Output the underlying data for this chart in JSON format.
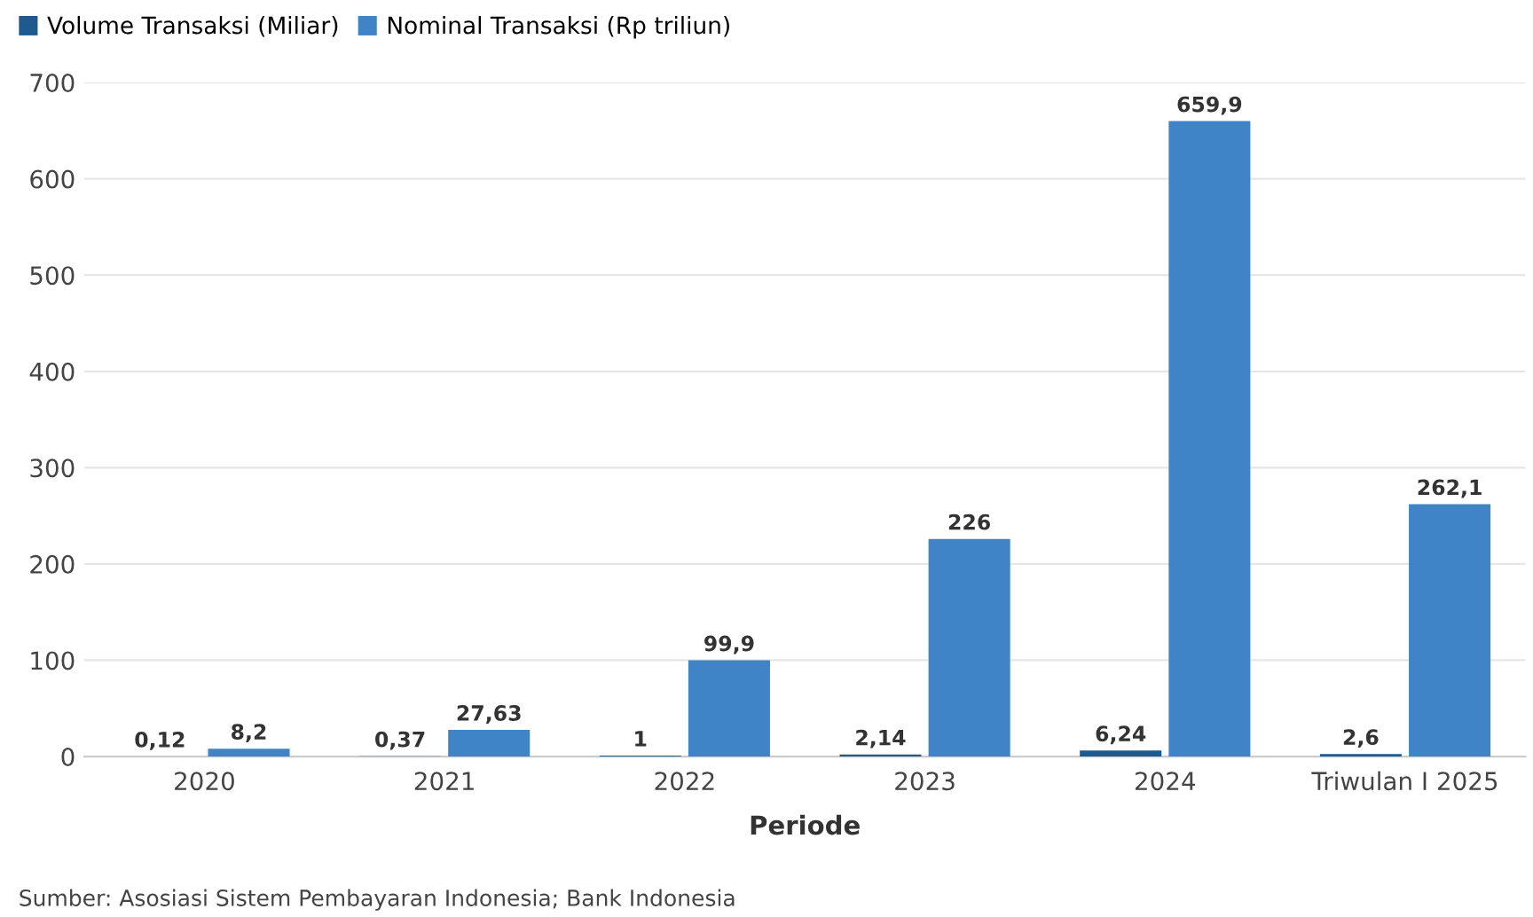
{
  "chart_data": {
    "type": "bar",
    "xlabel": "Periode",
    "categories": [
      "2020",
      "2021",
      "2022",
      "2023",
      "2024",
      "Triwulan I 2025"
    ],
    "series": [
      {
        "name": "Volume Transaksi (Miliar)",
        "color": "#1f5a8f",
        "values": [
          0.12,
          0.37,
          1,
          2.14,
          6.24,
          2.6
        ],
        "value_labels": [
          "0,12",
          "0,37",
          "1",
          "2,14",
          "6,24",
          "2,6"
        ]
      },
      {
        "name": "Nominal Transaksi (Rp triliun)",
        "color": "#3f84c6",
        "values": [
          8.2,
          27.63,
          99.9,
          226,
          659.9,
          262.1
        ],
        "value_labels": [
          "8,2",
          "27,63",
          "99,9",
          "226",
          "659,9",
          "262,1"
        ]
      }
    ],
    "ylim": [
      0,
      700
    ],
    "yticks": [
      0,
      100,
      200,
      300,
      400,
      500,
      600,
      700
    ],
    "grid": "y",
    "legend": "top left",
    "annotations": [
      "Sumber: Asosiasi Sistem Pembayaran Indonesia; Bank Indonesia"
    ]
  }
}
